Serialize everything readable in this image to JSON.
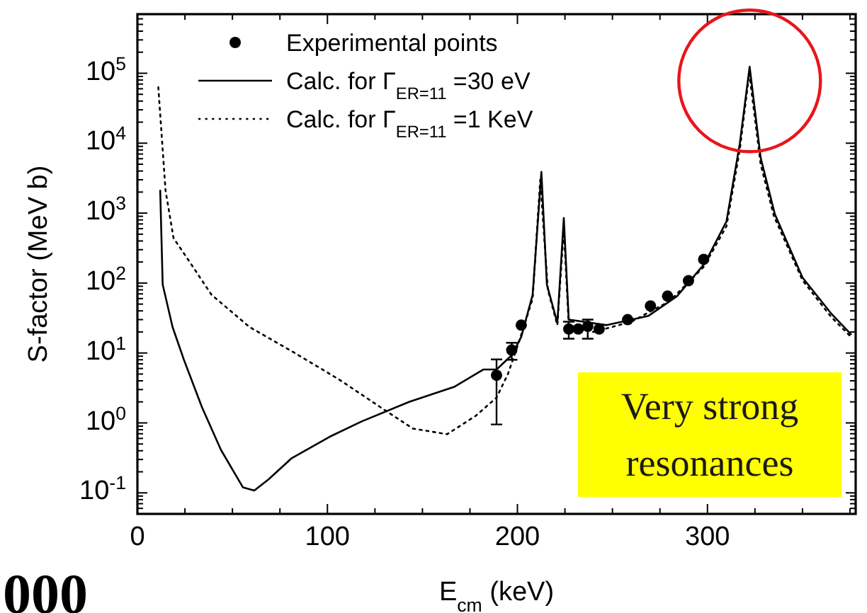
{
  "chart_data": {
    "type": "line",
    "xlabel": "E$_{cm}$ (keV)",
    "ylabel": "S-factor (MeV b)",
    "log": "y",
    "xlim": [
      0,
      378
    ],
    "xticks": [
      0,
      {
        "value": 25,
        "label": null
      },
      {
        "value": 50,
        "label": null
      },
      {
        "value": 75,
        "label": null
      },
      100,
      {
        "value": 125,
        "label": null
      },
      {
        "value": 150,
        "label": null
      },
      {
        "value": 175,
        "label": null
      },
      200,
      {
        "value": 225,
        "label": null
      },
      {
        "value": 250,
        "label": null
      },
      {
        "value": 275,
        "label": null
      },
      300,
      {
        "value": 325,
        "label": null
      },
      {
        "value": 350,
        "label": null
      },
      {
        "value": 375,
        "label": null
      }
    ],
    "ylim": [
      0.05,
      700000
    ],
    "yticks": [
      {
        "value": 0.1,
        "label": "10$^{-1}$"
      },
      {
        "value": 1,
        "label": "10$^{0}$"
      },
      {
        "value": 10,
        "label": "10$^{1}$"
      },
      {
        "value": 100,
        "label": "10$^{2}$"
      },
      {
        "value": 1000,
        "label": "10$^{3}$"
      },
      {
        "value": 10000,
        "label": "10$^{4}$"
      },
      {
        "value": 100000,
        "label": "10$^{5}$"
      }
    ],
    "legend": "top left",
    "series": [
      {
        "name": "Experimental points",
        "type": "scatter",
        "marker": "circle",
        "color": "#000000",
        "x": [
          189,
          197,
          202,
          227,
          232,
          237,
          243,
          258,
          270,
          279,
          290,
          298
        ],
        "values": [
          4.8,
          11,
          25,
          22,
          22,
          24,
          22,
          30,
          47,
          65,
          108,
          218
        ],
        "errors": [
          [
            0.95,
            8.1
          ],
          [
            8,
            14
          ],
          null,
          [
            16,
            28
          ],
          null,
          [
            16,
            30
          ],
          null,
          null,
          null,
          null,
          null,
          null
        ]
      },
      {
        "name": "Calc. for Γ$_{ER=11}$ =30 eV",
        "line_style": "solid",
        "color": "#000000",
        "x": [
          12,
          13.3,
          18.5,
          24.4,
          34,
          44,
          55.5,
          61.5,
          69,
          81,
          101,
          118,
          143,
          167,
          182,
          189,
          197,
          202,
          208,
          212.6,
          215.5,
          221,
          224.4,
          227,
          247,
          269,
          284,
          298.5,
          310,
          317,
          322.2,
          328,
          335.5,
          350,
          365,
          375.5
        ],
        "values": [
          2100,
          95,
          23.5,
          8.1,
          1.67,
          0.41,
          0.12,
          0.108,
          0.156,
          0.31,
          0.63,
          1.05,
          2,
          3.3,
          5.8,
          5.8,
          9.3,
          17,
          68,
          3900,
          95,
          27,
          850,
          30,
          25,
          34,
          65,
          190,
          760,
          9800,
          124000,
          6200,
          960,
          120,
          37,
          18.6
        ]
      },
      {
        "name": "Calc. for Γ$_{ER=11}$ =1 KeV",
        "line_style": "dotted",
        "color": "#000000",
        "x": [
          11,
          14.8,
          19,
          27,
          39,
          59,
          81,
          106,
          128,
          145,
          163,
          178,
          189,
          195,
          201,
          204,
          208,
          212,
          216,
          221,
          224.4,
          227,
          240,
          260,
          280,
          298,
          310,
          317,
          322,
          328,
          335,
          350,
          365,
          375.5
        ],
        "values": [
          63000,
          2100,
          440,
          210,
          68,
          23.5,
          10.7,
          4.2,
          1.67,
          0.83,
          0.69,
          1.26,
          2.3,
          5,
          15,
          27,
          60,
          3000,
          80,
          25,
          600,
          25,
          20,
          28,
          55,
          170,
          650,
          8000,
          100000,
          5000,
          900,
          110,
          33,
          17
        ]
      }
    ],
    "annotations": [
      "Very strong resonances",
      "000"
    ]
  }
}
